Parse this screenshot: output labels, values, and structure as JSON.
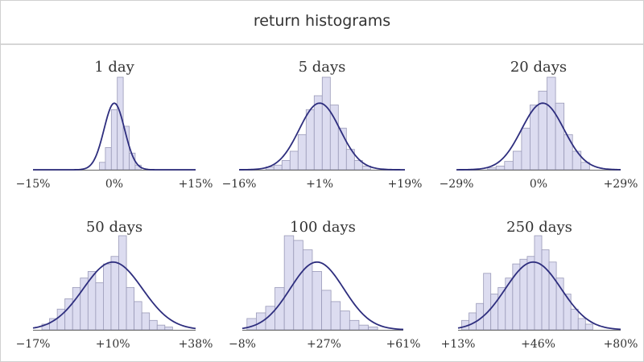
{
  "title": "return histograms",
  "colors": {
    "bar_fill": "#dcdcf0",
    "bar_stroke": "#9a9ab8",
    "curve": "#2e2e7e",
    "axis": "#666666",
    "text": "#333333"
  },
  "chart_data": [
    {
      "type": "bar",
      "title": "1 day",
      "xlim": [
        -15,
        15
      ],
      "ticks": [
        {
          "label": "−15%",
          "value": -15
        },
        {
          "label": "0%",
          "value": 0
        },
        {
          "label": "+15%",
          "value": 15
        }
      ],
      "curve": {
        "mean": 0,
        "sd": 1.9
      },
      "bins": [
        {
          "x": -2.2,
          "h": 0.08
        },
        {
          "x": -1.1,
          "h": 0.24
        },
        {
          "x": 0,
          "h": 0.65
        },
        {
          "x": 1.1,
          "h": 1.0
        },
        {
          "x": 2.2,
          "h": 0.47
        },
        {
          "x": 3.3,
          "h": 0.18
        },
        {
          "x": 4.4,
          "h": 0.05
        }
      ]
    },
    {
      "type": "bar",
      "title": "5 days",
      "xlim": [
        -16,
        19
      ],
      "ticks": [
        {
          "label": "−16%",
          "value": -16
        },
        {
          "label": "+1%",
          "value": 1
        },
        {
          "label": "+19%",
          "value": 19
        }
      ],
      "curve": {
        "mean": 1,
        "sd": 4.3
      },
      "bins": [
        {
          "x": -9.5,
          "h": 0.03
        },
        {
          "x": -7.8,
          "h": 0.05
        },
        {
          "x": -6.1,
          "h": 0.1
        },
        {
          "x": -4.4,
          "h": 0.2
        },
        {
          "x": -2.7,
          "h": 0.38
        },
        {
          "x": -1.0,
          "h": 0.65
        },
        {
          "x": 0.7,
          "h": 0.8
        },
        {
          "x": 2.4,
          "h": 1.0
        },
        {
          "x": 4.1,
          "h": 0.7
        },
        {
          "x": 5.8,
          "h": 0.45
        },
        {
          "x": 7.5,
          "h": 0.22
        },
        {
          "x": 9.2,
          "h": 0.1
        },
        {
          "x": 10.9,
          "h": 0.04
        }
      ]
    },
    {
      "type": "bar",
      "title": "20 days",
      "xlim": [
        -29,
        29
      ],
      "ticks": [
        {
          "label": "−29%",
          "value": -29
        },
        {
          "label": "0%",
          "value": 0
        },
        {
          "label": "+29%",
          "value": 29
        }
      ],
      "curve": {
        "mean": 1.5,
        "sd": 7.5
      },
      "bins": [
        {
          "x": -16.5,
          "h": 0.02
        },
        {
          "x": -13.5,
          "h": 0.04
        },
        {
          "x": -10.5,
          "h": 0.09
        },
        {
          "x": -7.5,
          "h": 0.2
        },
        {
          "x": -4.5,
          "h": 0.45
        },
        {
          "x": -1.5,
          "h": 0.7
        },
        {
          "x": 1.5,
          "h": 0.85
        },
        {
          "x": 4.5,
          "h": 1.0
        },
        {
          "x": 7.5,
          "h": 0.72
        },
        {
          "x": 10.5,
          "h": 0.38
        },
        {
          "x": 13.5,
          "h": 0.2
        },
        {
          "x": 16.5,
          "h": 0.08
        }
      ]
    },
    {
      "type": "bar",
      "title": "50 days",
      "xlim": [
        -17,
        38
      ],
      "ticks": [
        {
          "label": "−17%",
          "value": -17
        },
        {
          "label": "+10%",
          "value": 10
        },
        {
          "label": "+38%",
          "value": 38
        }
      ],
      "curve": {
        "mean": 10,
        "sd": 10
      },
      "bins": [
        {
          "x": -12.7,
          "h": 0.06
        },
        {
          "x": -10.1,
          "h": 0.12
        },
        {
          "x": -7.5,
          "h": 0.22
        },
        {
          "x": -4.9,
          "h": 0.33
        },
        {
          "x": -2.3,
          "h": 0.45
        },
        {
          "x": 0.3,
          "h": 0.55
        },
        {
          "x": 2.9,
          "h": 0.62
        },
        {
          "x": 5.5,
          "h": 0.5
        },
        {
          "x": 8.1,
          "h": 0.7
        },
        {
          "x": 10.7,
          "h": 0.78
        },
        {
          "x": 13.3,
          "h": 1.0
        },
        {
          "x": 15.9,
          "h": 0.45
        },
        {
          "x": 18.5,
          "h": 0.3
        },
        {
          "x": 21.1,
          "h": 0.18
        },
        {
          "x": 23.7,
          "h": 0.1
        },
        {
          "x": 26.3,
          "h": 0.05
        },
        {
          "x": 28.9,
          "h": 0.03
        }
      ]
    },
    {
      "type": "bar",
      "title": "100 days",
      "xlim": [
        -8,
        61
      ],
      "ticks": [
        {
          "label": "−8%",
          "value": -8
        },
        {
          "label": "+27%",
          "value": 27
        },
        {
          "label": "+61%",
          "value": 61
        }
      ],
      "curve": {
        "mean": 24,
        "sd": 11.5
      },
      "bins": [
        {
          "x": -4,
          "h": 0.12
        },
        {
          "x": 0,
          "h": 0.18
        },
        {
          "x": 4,
          "h": 0.25
        },
        {
          "x": 8,
          "h": 0.45
        },
        {
          "x": 12,
          "h": 1.0
        },
        {
          "x": 16,
          "h": 0.95
        },
        {
          "x": 20,
          "h": 0.85
        },
        {
          "x": 24,
          "h": 0.62
        },
        {
          "x": 28,
          "h": 0.42
        },
        {
          "x": 32,
          "h": 0.3
        },
        {
          "x": 36,
          "h": 0.2
        },
        {
          "x": 40,
          "h": 0.1
        },
        {
          "x": 44,
          "h": 0.05
        },
        {
          "x": 48,
          "h": 0.03
        }
      ]
    },
    {
      "type": "bar",
      "title": "250 days",
      "xlim": [
        13,
        80
      ],
      "ticks": [
        {
          "label": "+13%",
          "value": 13
        },
        {
          "label": "+46%",
          "value": 46
        },
        {
          "label": "+80%",
          "value": 80
        }
      ],
      "curve": {
        "mean": 44,
        "sd": 11.5
      },
      "bins": [
        {
          "x": 16,
          "h": 0.1
        },
        {
          "x": 19,
          "h": 0.18
        },
        {
          "x": 22,
          "h": 0.28
        },
        {
          "x": 25,
          "h": 0.6
        },
        {
          "x": 28,
          "h": 0.38
        },
        {
          "x": 31,
          "h": 0.45
        },
        {
          "x": 34,
          "h": 0.55
        },
        {
          "x": 37,
          "h": 0.7
        },
        {
          "x": 40,
          "h": 0.75
        },
        {
          "x": 43,
          "h": 0.78
        },
        {
          "x": 46,
          "h": 1.0
        },
        {
          "x": 49,
          "h": 0.85
        },
        {
          "x": 52,
          "h": 0.72
        },
        {
          "x": 55,
          "h": 0.55
        },
        {
          "x": 58,
          "h": 0.38
        },
        {
          "x": 61,
          "h": 0.22
        },
        {
          "x": 64,
          "h": 0.12
        },
        {
          "x": 67,
          "h": 0.06
        }
      ]
    }
  ]
}
